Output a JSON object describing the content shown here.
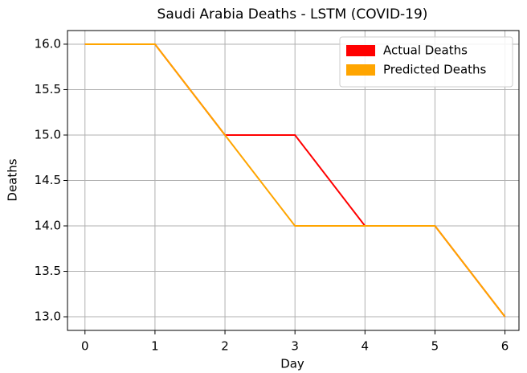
{
  "chart_data": {
    "type": "line",
    "title": "Saudi Arabia Deaths - LSTM (COVID-19)",
    "x_label": "Day",
    "y_label": "Deaths",
    "x": [
      0,
      1,
      2,
      3,
      4,
      5,
      6
    ],
    "series": [
      {
        "name": "Actual Deaths",
        "color": "#ff0000",
        "values": [
          16,
          16,
          15,
          15,
          14,
          14,
          13
        ]
      },
      {
        "name": "Predicted Deaths",
        "color": "#ffa500",
        "values": [
          16,
          16,
          15,
          14,
          14,
          14,
          13
        ]
      }
    ],
    "xlim": [
      -0.25,
      6.2
    ],
    "ylim": [
      12.85,
      16.15
    ],
    "xticks": [
      0,
      1,
      2,
      3,
      4,
      5,
      6
    ],
    "yticks": [
      {
        "value": 13,
        "label": "13.0"
      },
      {
        "value": 13.5,
        "label": "13.5"
      },
      {
        "value": 14,
        "label": "14.0"
      },
      {
        "value": 14.5,
        "label": "14.5"
      },
      {
        "value": 15,
        "label": "15.0"
      },
      {
        "value": 15.5,
        "label": "15.5"
      },
      {
        "value": 16,
        "label": "16.0"
      }
    ],
    "grid": true,
    "legend": "upper right"
  }
}
